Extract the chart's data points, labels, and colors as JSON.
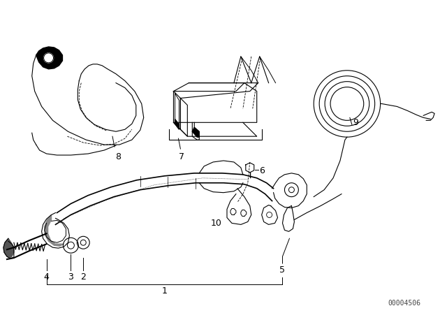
{
  "background_color": "#ffffff",
  "line_color": "#000000",
  "watermark": "00004506",
  "fig_width": 6.4,
  "fig_height": 4.48,
  "dpi": 100
}
